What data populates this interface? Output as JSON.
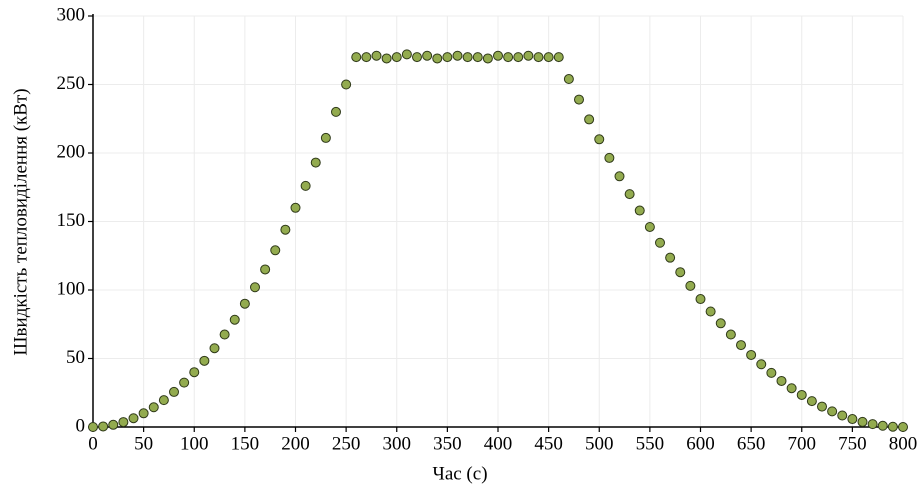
{
  "chart_data": {
    "type": "scatter",
    "x_label": "Час (с)",
    "y_label": "Швидкість тепловиділення (кВт)",
    "x": [
      0,
      10,
      20,
      30,
      40,
      50,
      60,
      70,
      80,
      90,
      100,
      110,
      120,
      130,
      140,
      150,
      160,
      170,
      180,
      190,
      200,
      210,
      220,
      230,
      240,
      250,
      260,
      270,
      280,
      290,
      300,
      310,
      320,
      330,
      340,
      350,
      360,
      370,
      380,
      390,
      400,
      410,
      420,
      430,
      440,
      450,
      460,
      470,
      480,
      490,
      500,
      510,
      520,
      530,
      540,
      550,
      560,
      570,
      580,
      590,
      600,
      610,
      620,
      630,
      640,
      650,
      660,
      670,
      680,
      690,
      700,
      710,
      720,
      730,
      740,
      750,
      760,
      770,
      780,
      790,
      800
    ],
    "series": [
      {
        "color": "#93ab4f",
        "edge_color": "#2e3818",
        "values": [
          0,
          0.4,
          1.6,
          3.6,
          6.4,
          10,
          14.4,
          19.6,
          25.6,
          32.4,
          40,
          48.3,
          57.5,
          67.5,
          78.3,
          90,
          102,
          115,
          129,
          144,
          160,
          176,
          193,
          211,
          230,
          250,
          270,
          270,
          271,
          269,
          270,
          272,
          270,
          271,
          269,
          270,
          271,
          270,
          270,
          269,
          271,
          270,
          270,
          271,
          270,
          270,
          270,
          254,
          239,
          224.5,
          210,
          196.4,
          183,
          170,
          158,
          146,
          134.5,
          123.6,
          113,
          103,
          93.4,
          84.3,
          75.7,
          67.5,
          59.8,
          52.6,
          45.8,
          39.5,
          33.6,
          28.3,
          23.4,
          18.9,
          14.9,
          11.4,
          8.4,
          5.8,
          3.7,
          2.1,
          0.9,
          0.2,
          0
        ]
      }
    ],
    "xlim": [
      0,
      800
    ],
    "ylim": [
      0,
      300
    ],
    "xticks": [
      0,
      50,
      100,
      150,
      200,
      250,
      300,
      350,
      400,
      450,
      500,
      550,
      600,
      650,
      700,
      750,
      800
    ],
    "yticks": [
      0,
      50,
      100,
      150,
      200,
      250,
      300
    ],
    "grid": true
  }
}
